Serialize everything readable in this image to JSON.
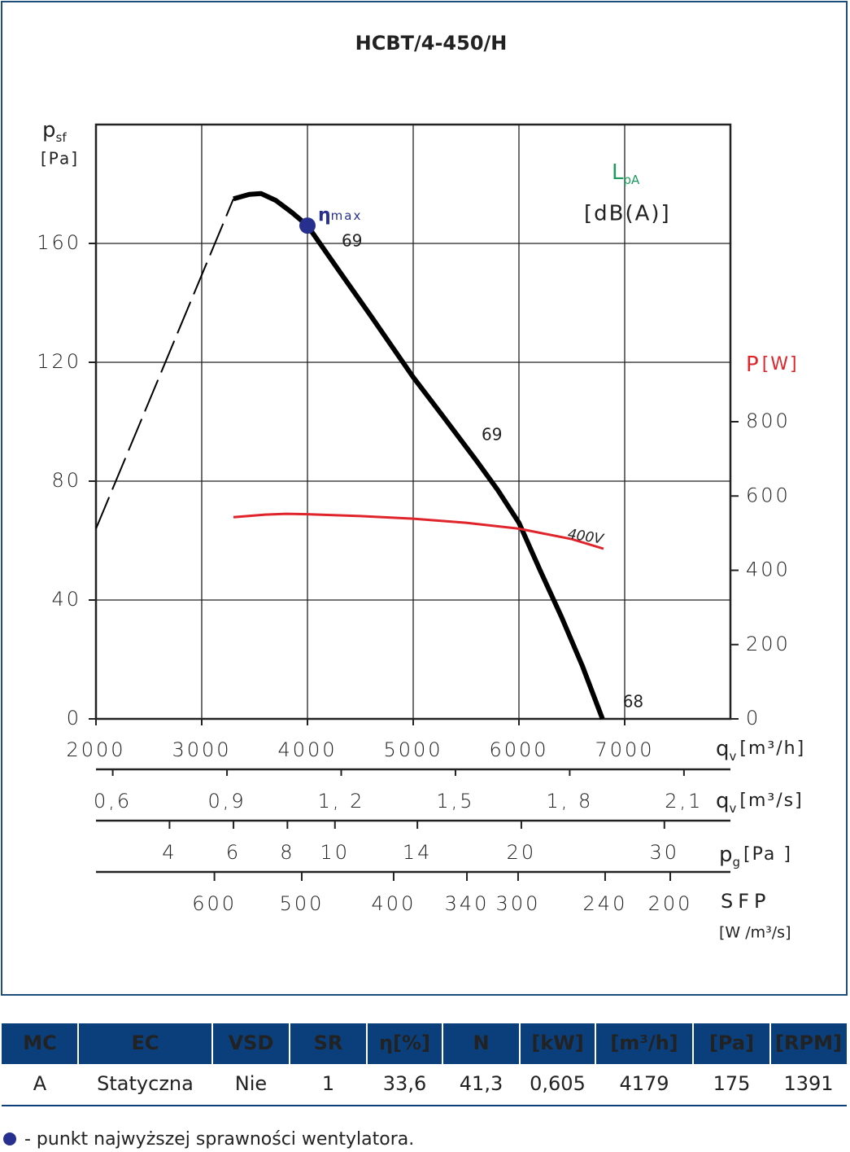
{
  "chart_data": {
    "type": "fan-curve",
    "title": "HCBT/4-450/H",
    "x_label": {
      "symbol": "q",
      "sub": "v",
      "unit": "[m³/h]"
    },
    "y_label": {
      "symbol": "p",
      "sub": "sf",
      "unit": "[Pa]"
    },
    "y2_label": {
      "symbol": "P",
      "unit": "[W]",
      "color": "#e0242b"
    },
    "noise_label": {
      "symbol": "L",
      "sub": "pA",
      "unit": "[dB(A)]",
      "color": "#1f9a5c"
    },
    "xlim": [
      2000,
      8000
    ],
    "xticks": [
      2000,
      3000,
      4000,
      5000,
      6000,
      7000
    ],
    "ylim": [
      0,
      200
    ],
    "yticks": [
      0,
      40,
      80,
      120,
      160
    ],
    "y2lim": [
      0,
      1600
    ],
    "y2ticks": [
      0,
      200,
      400,
      600,
      800
    ],
    "grid": true,
    "series": [
      {
        "color": "#000000",
        "style": "dashed",
        "x": [
          2000,
          3300
        ],
        "values": [
          64,
          175
        ]
      },
      {
        "color": "#000000",
        "style": "solid",
        "x": [
          3300,
          3450,
          3560,
          3700,
          3850,
          4000,
          4300,
          4600,
          5000,
          5300,
          5600,
          5800,
          6000,
          6200,
          6400,
          6600,
          6790
        ],
        "values": [
          175,
          176.5,
          176.8,
          174.5,
          170.5,
          166,
          150.7,
          135.6,
          115,
          101,
          86.8,
          77,
          66,
          50,
          34.5,
          17.8,
          0
        ]
      },
      {
        "name": "400V",
        "color": "#e0242b",
        "style": "solid",
        "axis": "y2",
        "x": [
          3300,
          3600,
          3800,
          4000,
          4500,
          5000,
          5500,
          6000,
          6500,
          6800
        ],
        "values": [
          543,
          550,
          552,
          551,
          546,
          539,
          528,
          512,
          484,
          458
        ]
      }
    ],
    "eta_max": {
      "symbol": "η",
      "sub": "max",
      "x": 4000,
      "y": 166,
      "color": "#27308f"
    },
    "noise": {
      "x": [
        4000,
        5600,
        6790
      ],
      "y": [
        166,
        86.8,
        0
      ],
      "values": [
        69,
        69,
        68
      ]
    },
    "qv_s_axis": {
      "symbol": "q",
      "sub": "v",
      "unit": "[m³/s]",
      "xlim": [
        0.556,
        2.222
      ],
      "xticks": [
        {
          "value": 0.6,
          "label": "0,6"
        },
        {
          "value": 0.9,
          "label": "0,9"
        },
        {
          "value": 1.2,
          "label": "1, 2"
        },
        {
          "value": 1.5,
          "label": "1,5"
        },
        {
          "value": 1.8,
          "label": "1, 8"
        },
        {
          "value": 2.1,
          "label": "2,1"
        }
      ]
    },
    "pg_axis": {
      "symbol": "p",
      "sub": "g",
      "unit": "[Pa ]",
      "scale": "sqrt",
      "xlim": [
        2.2,
        35.3
      ],
      "xticks": [
        4,
        6,
        8,
        10,
        14,
        20,
        30
      ]
    },
    "sfp_axis": {
      "symbol": "SFP",
      "unit": "[W /m³/s]",
      "ticks": [
        600,
        500,
        400,
        340,
        300,
        240,
        200
      ],
      "q": [
        3120,
        3946,
        4815,
        5508,
        5992,
        6815,
        7431
      ]
    }
  },
  "table": {
    "headers": [
      "MC",
      "EC",
      "VSD",
      "SR",
      "η[%]",
      "N",
      "[kW]",
      "[m³/h]",
      "[Pa]",
      "[RPM]"
    ],
    "rows": [
      [
        "A",
        "Statyczna",
        "Nie",
        "1",
        "33,6",
        "41,3",
        "0,605",
        "4179",
        "175",
        "1391"
      ]
    ]
  },
  "note": "- punkt najwyższej sprawności wentylatora."
}
